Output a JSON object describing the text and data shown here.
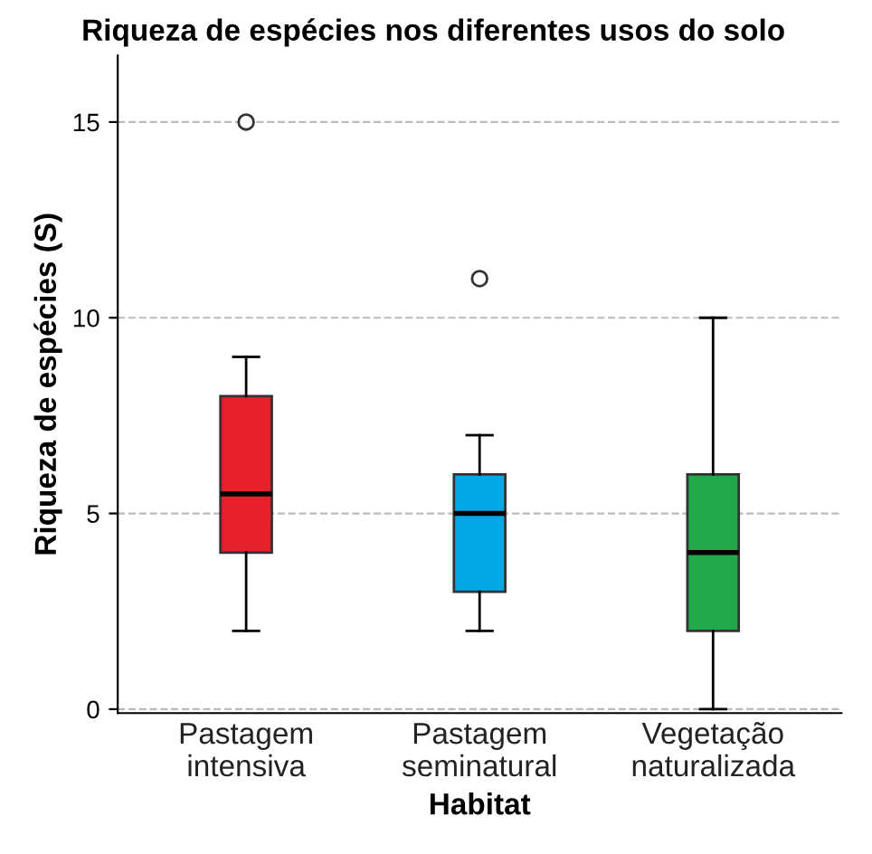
{
  "chart_data": {
    "type": "box",
    "title": "Riqueza de espécies nos diferentes usos do solo",
    "xlabel": "Habitat",
    "ylabel": "Riqueza de espécies (S)",
    "categories": [
      "Pastagem\nintensiva",
      "Pastagem\nseminatural",
      "Vegetação\nnaturalizada"
    ],
    "colors": [
      "#e8202a",
      "#00a9e6",
      "#21a84a"
    ],
    "boxes": [
      {
        "low": 2,
        "q1": 4,
        "median": 5.5,
        "q3": 8,
        "high": 9,
        "outliers": [
          15
        ]
      },
      {
        "low": 2,
        "q1": 3,
        "median": 5,
        "q3": 6,
        "high": 7,
        "outliers": [
          11
        ]
      },
      {
        "low": 0,
        "q1": 2,
        "median": 4,
        "q3": 6,
        "high": 10
      }
    ],
    "ylim": [
      -0.1,
      16.7
    ],
    "yticks": [
      0,
      5,
      10,
      15
    ],
    "grid": "y"
  }
}
